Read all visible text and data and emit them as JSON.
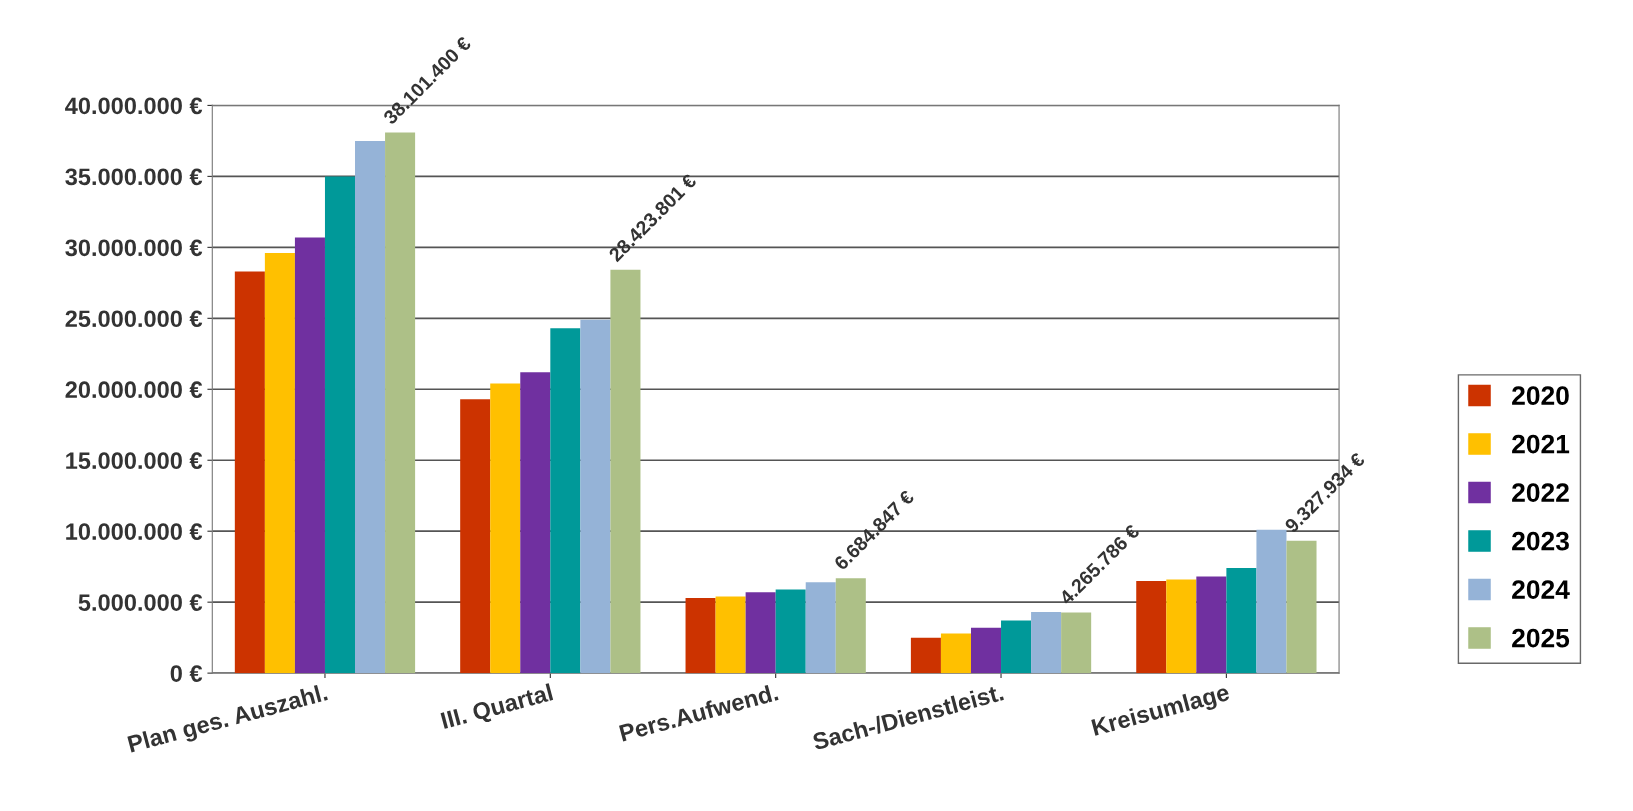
{
  "chart_data": {
    "type": "bar",
    "categories": [
      "Plan ges. Auszahl.",
      "III. Quartal",
      "Pers.Aufwend.",
      "Sach-/Dienstleist.",
      "Kreisumlage"
    ],
    "series": [
      {
        "name": "2020",
        "color": "#cc3300",
        "values": [
          28300000,
          19300000,
          5300000,
          2500000,
          6500000
        ]
      },
      {
        "name": "2021",
        "color": "#ffc000",
        "values": [
          29600000,
          20400000,
          5400000,
          2800000,
          6600000
        ]
      },
      {
        "name": "2022",
        "color": "#7030a0",
        "values": [
          30700000,
          21200000,
          5700000,
          3200000,
          6800000
        ]
      },
      {
        "name": "2023",
        "color": "#009999",
        "values": [
          35000000,
          24300000,
          5900000,
          3700000,
          7400000
        ]
      },
      {
        "name": "2024",
        "color": "#95b3d7",
        "values": [
          37500000,
          24900000,
          6400000,
          4300000,
          10100000
        ]
      },
      {
        "name": "2025",
        "color": "#adc087",
        "values": [
          38101400,
          28423801,
          6684847,
          4265786,
          9327934
        ],
        "value_labels": [
          "38.101.400 €",
          "28.423.801 €",
          "6.684.847 €",
          "4.265.786 €",
          "9.327.934 €"
        ]
      }
    ],
    "ylim": [
      0,
      40000000
    ],
    "yticks": [
      {
        "value": 0,
        "label": "0 €"
      },
      {
        "value": 5000000,
        "label": "5.000.000 €"
      },
      {
        "value": 10000000,
        "label": "10.000.000 €"
      },
      {
        "value": 15000000,
        "label": "15.000.000 €"
      },
      {
        "value": 20000000,
        "label": "20.000.000 €"
      },
      {
        "value": 25000000,
        "label": "25.000.000 €"
      },
      {
        "value": 30000000,
        "label": "30.000.000 €"
      },
      {
        "value": 35000000,
        "label": "35.000.000 €"
      },
      {
        "value": 40000000,
        "label": "40.000.000 €"
      }
    ],
    "grid": "y",
    "legend": "right"
  }
}
